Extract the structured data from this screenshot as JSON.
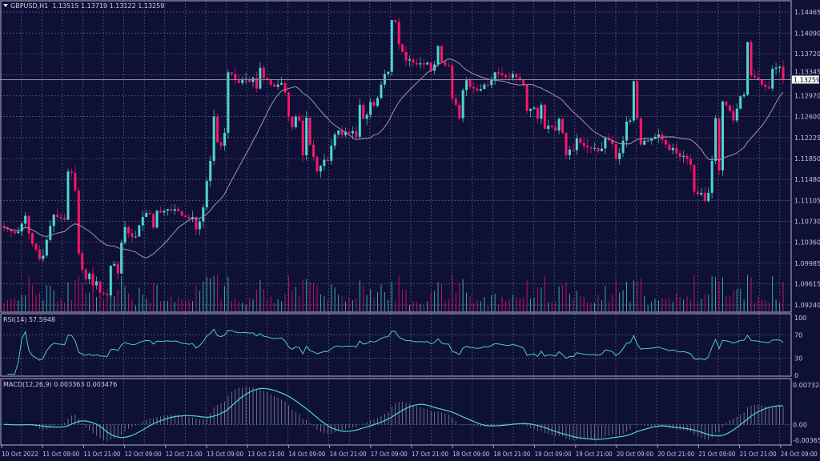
{
  "header": {
    "symbol": "GBPUSD,H1",
    "ohlc": "1.13515 1.13719 1.13122 1.13259"
  },
  "rsi_title": "RSI(14) 57.5948",
  "macd_title": "MACD(12,26,9) 0.003363 0.003476",
  "current_price_label": "1.13259",
  "colors": {
    "background": "#0e1036",
    "bull": "#4fd6cf",
    "bear": "#ff1469",
    "grid": "#5c5f86",
    "ma": "#9a9aa8",
    "rsi": "#4fc9c9",
    "macd_hist": "#b8b8c8",
    "macd_signal": "#4fd6cf"
  },
  "chart_data": [
    {
      "type": "candlestick",
      "symbol": "GBPUSD",
      "timeframe": "H1",
      "overlay": "moving average",
      "grid": true,
      "current_price": 1.13259,
      "ylim": [
        1.0905,
        1.1465
      ],
      "y_ticks": [
        "1.14465",
        "1.14090",
        "1.13720",
        "1.13345",
        "1.12970",
        "1.12600",
        "1.12225",
        "1.11850",
        "1.11480",
        "1.11105",
        "1.10730",
        "1.10360",
        "1.09985",
        "1.09615",
        "1.09240"
      ],
      "x_ticks": [
        "10 Oct 2022",
        "11 Oct 09:00",
        "11 Oct 21:00",
        "12 Oct 09:00",
        "12 Oct 21:00",
        "13 Oct 09:00",
        "13 Oct 21:00",
        "14 Oct 09:00",
        "14 Oct 21:00",
        "17 Oct 09:00",
        "17 Oct 21:00",
        "18 Oct 09:00",
        "18 Oct 21:00",
        "19 Oct 09:00",
        "19 Oct 21:00",
        "20 Oct 09:00",
        "20 Oct 21:00",
        "21 Oct 09:00",
        "21 Oct 21:00",
        "24 Oct 09:00"
      ],
      "closes": [
        1.1062,
        1.1059,
        1.1055,
        1.1052,
        1.1055,
        1.1069,
        1.1083,
        1.1052,
        1.1033,
        1.1023,
        1.1006,
        1.1012,
        1.104,
        1.1065,
        1.1085,
        1.1081,
        1.1079,
        1.1076,
        1.1162,
        1.116,
        1.1128,
        1.1016,
        1.0987,
        1.097,
        1.098,
        1.0959,
        1.0966,
        1.0946,
        1.0944,
        1.0941,
        1.0994,
        1.0997,
        1.098,
        1.1035,
        1.1063,
        1.1052,
        1.1045,
        1.1046,
        1.1066,
        1.1081,
        1.1088,
        1.1086,
        1.1062,
        1.1092,
        1.1089,
        1.1092,
        1.1095,
        1.1092,
        1.1095,
        1.1091,
        1.1083,
        1.1081,
        1.1078,
        1.1081,
        1.1059,
        1.1073,
        1.1098,
        1.1145,
        1.1181,
        1.126,
        1.1214,
        1.1208,
        1.1231,
        1.1339,
        1.1336,
        1.1326,
        1.132,
        1.1325,
        1.1327,
        1.1322,
        1.1329,
        1.131,
        1.1347,
        1.1329,
        1.1325,
        1.1317,
        1.1313,
        1.1317,
        1.132,
        1.1303,
        1.126,
        1.1241,
        1.126,
        1.1253,
        1.1191,
        1.1258,
        1.121,
        1.1188,
        1.1162,
        1.1172,
        1.1183,
        1.1181,
        1.1208,
        1.1228,
        1.1235,
        1.1227,
        1.1233,
        1.123,
        1.1234,
        1.1224,
        1.1281,
        1.1256,
        1.1263,
        1.1286,
        1.1279,
        1.1293,
        1.1317,
        1.1336,
        1.134,
        1.1432,
        1.1429,
        1.1389,
        1.1375,
        1.136,
        1.1362,
        1.1356,
        1.1353,
        1.1355,
        1.1353,
        1.1356,
        1.1342,
        1.1353,
        1.1386,
        1.1358,
        1.1352,
        1.1351,
        1.1292,
        1.1281,
        1.1257,
        1.1307,
        1.1325,
        1.1313,
        1.131,
        1.1306,
        1.1309,
        1.1317,
        1.1316,
        1.1326,
        1.1339,
        1.1337,
        1.1334,
        1.133,
        1.1329,
        1.1336,
        1.133,
        1.1325,
        1.1317,
        1.127,
        1.1274,
        1.1276,
        1.1256,
        1.1281,
        1.1238,
        1.1244,
        1.1241,
        1.1235,
        1.1256,
        1.1231,
        1.1191,
        1.1201,
        1.12,
        1.1221,
        1.1213,
        1.1208,
        1.1205,
        1.1203,
        1.1204,
        1.1198,
        1.1203,
        1.1221,
        1.1218,
        1.1211,
        1.1184,
        1.1195,
        1.1217,
        1.1251,
        1.1253,
        1.1323,
        1.1257,
        1.121,
        1.1217,
        1.1217,
        1.122,
        1.1224,
        1.1228,
        1.1218,
        1.121,
        1.12,
        1.1204,
        1.1195,
        1.1188,
        1.119,
        1.1184,
        1.1174,
        1.1126,
        1.1121,
        1.1124,
        1.1109,
        1.1124,
        1.1181,
        1.1257,
        1.1164,
        1.1287,
        1.128,
        1.127,
        1.1253,
        1.1274,
        1.1296,
        1.1299,
        1.1393,
        1.1333,
        1.133,
        1.1325,
        1.1317,
        1.1313,
        1.131,
        1.1345,
        1.1347,
        1.1349,
        1.13259
      ]
    },
    {
      "type": "line",
      "indicator": "RSI(14)",
      "value": 57.5948,
      "ylim": [
        0,
        100
      ],
      "y_ticks": [
        "100",
        "70",
        "30",
        "0"
      ],
      "levels": [
        70,
        30
      ]
    },
    {
      "type": "bar",
      "indicator": "MACD(12,26,9)",
      "main": 0.003363,
      "signal": 0.003476,
      "ylim": [
        -0.003655,
        0.007324
      ],
      "y_ticks": [
        "0.007324",
        "0.00",
        "-0.003655"
      ]
    }
  ]
}
